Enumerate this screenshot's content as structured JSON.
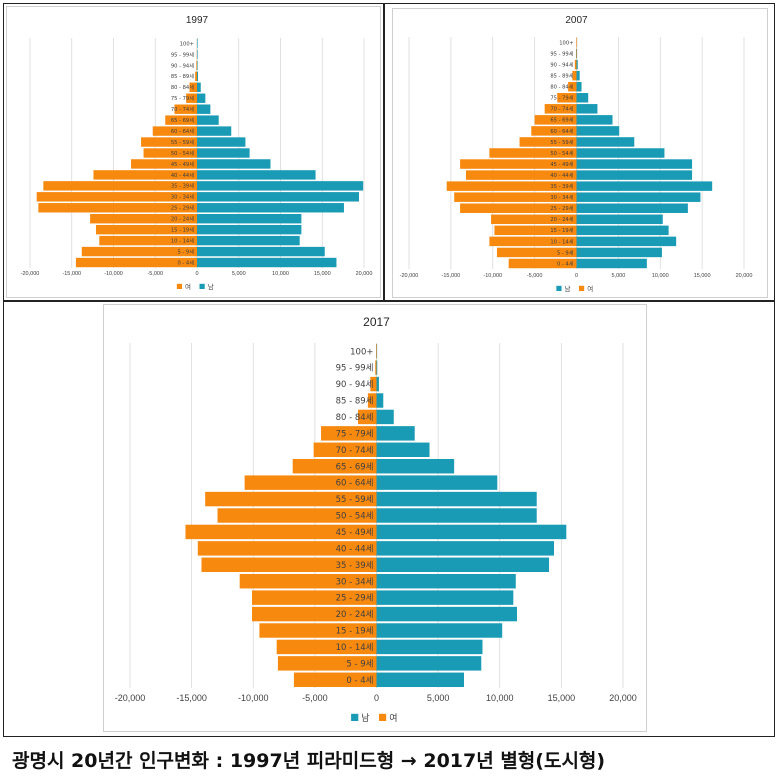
{
  "caption": "광명시 20년간 인구변화 :  1997년 피라미드형 → 2017년 별형(도시형)",
  "colors": {
    "male": "#1a9bb5",
    "female": "#f7890f",
    "grid": "#d9d9d9",
    "text": "#404040"
  },
  "chart_data": [
    {
      "type": "bar",
      "orientation": "horizontal",
      "title": "1997",
      "categories": [
        "0 - 4세",
        "5 - 9세",
        "10 - 14세",
        "15 - 19세",
        "20 - 24세",
        "25 - 29세",
        "30 - 34세",
        "35 - 39세",
        "40 - 44세",
        "45 - 49세",
        "50 - 54세",
        "55 - 59세",
        "60 - 64세",
        "65 - 69세",
        "70 - 74세",
        "75 - 79세",
        "80 - 84세",
        "85 - 89세",
        "90 - 94세",
        "95 - 99세",
        "100+"
      ],
      "series": [
        {
          "name": "여",
          "color": "#f7890f",
          "values": [
            -14500,
            -13800,
            -11700,
            -12100,
            -12800,
            -19000,
            -19200,
            -18400,
            -12400,
            -7900,
            -6400,
            -6700,
            -5300,
            -3800,
            -2700,
            -1300,
            -900,
            -220,
            -80,
            -30,
            -10
          ]
        },
        {
          "name": "남",
          "color": "#1a9bb5",
          "values": [
            16700,
            15300,
            12300,
            12500,
            12500,
            17600,
            19400,
            19900,
            14200,
            8800,
            6300,
            5800,
            4100,
            2600,
            1600,
            1000,
            450,
            120,
            40,
            15,
            5
          ]
        }
      ],
      "x_ticks": [
        "-20,000",
        "-15,000",
        "-10,000",
        "-5,000",
        "0",
        "5,000",
        "10,000",
        "15,000",
        "20,000"
      ],
      "xlim": [
        -20000,
        20000
      ],
      "legend": [
        "여",
        "남"
      ],
      "legend_position": "bottom",
      "grid": true
    },
    {
      "type": "bar",
      "orientation": "horizontal",
      "title": "2007",
      "categories": [
        "0 - 4세",
        "5 - 9세",
        "10 - 14세",
        "15 - 19세",
        "20 - 24세",
        "25 - 29세",
        "30 - 34세",
        "35 - 39세",
        "40 - 44세",
        "45 - 49세",
        "50 - 54세",
        "55 - 59세",
        "60 - 64세",
        "65 - 69세",
        "70 - 74세",
        "75 - 79세",
        "80 - 84세",
        "85 - 89세",
        "90 - 94세",
        "95 - 99세",
        "100+"
      ],
      "series": [
        {
          "name": "남",
          "color": "#1a9bb5",
          "values": [
            8400,
            10200,
            11900,
            11000,
            10300,
            13300,
            14800,
            16200,
            13800,
            13800,
            10500,
            6900,
            5100,
            4300,
            2500,
            1400,
            600,
            380,
            150,
            40,
            10
          ]
        },
        {
          "name": "여",
          "color": "#f7890f",
          "values": [
            -8100,
            -9500,
            -10400,
            -9800,
            -10200,
            -13900,
            -14600,
            -15500,
            -13200,
            -13900,
            -10400,
            -6800,
            -5400,
            -5000,
            -3800,
            -2300,
            -1000,
            -500,
            -200,
            -60,
            -10
          ]
        }
      ],
      "x_ticks": [
        "-20,000",
        "-15,000",
        "-10,000",
        "-5,000",
        "0",
        "5,000",
        "10,000",
        "15,000",
        "20,000"
      ],
      "xlim": [
        -20000,
        20000
      ],
      "legend": [
        "남",
        "여"
      ],
      "legend_position": "bottom",
      "grid": true
    },
    {
      "type": "bar",
      "orientation": "horizontal",
      "title": "2017",
      "categories": [
        "0 - 4세",
        "5 - 9세",
        "10 - 14세",
        "15 - 19세",
        "20 - 24세",
        "25 - 29세",
        "30 - 34세",
        "35 - 39세",
        "40 - 44세",
        "45 - 49세",
        "50 - 54세",
        "55 - 59세",
        "60 - 64세",
        "65 - 69세",
        "70 - 74세",
        "75 - 79세",
        "80 - 84세",
        "85 - 89세",
        "90 - 94세",
        "95 - 99세",
        "100+"
      ],
      "series": [
        {
          "name": "남",
          "color": "#1a9bb5",
          "values": [
            7100,
            8500,
            8600,
            10200,
            11400,
            11100,
            11300,
            14000,
            14400,
            15400,
            13000,
            13000,
            9800,
            6300,
            4300,
            3100,
            1400,
            550,
            200,
            60,
            10
          ]
        },
        {
          "name": "여",
          "color": "#f7890f",
          "values": [
            -6700,
            -8000,
            -8100,
            -9500,
            -10100,
            -10100,
            -11100,
            -14200,
            -14500,
            -15500,
            -12900,
            -13900,
            -10700,
            -6800,
            -5100,
            -4500,
            -1500,
            -700,
            -500,
            -100,
            -30
          ]
        }
      ],
      "x_ticks": [
        "-20,000",
        "-15,000",
        "-10,000",
        "-5,000",
        "0",
        "5,000",
        "10,000",
        "15,000",
        "20,000"
      ],
      "xlim": [
        -20000,
        20000
      ],
      "legend": [
        "남",
        "여"
      ],
      "legend_position": "bottom",
      "grid": true
    }
  ]
}
